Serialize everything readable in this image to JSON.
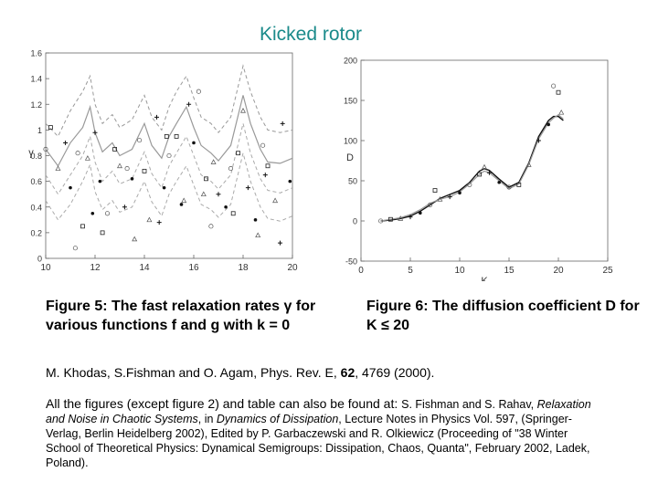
{
  "title": "Kicked rotor",
  "chart_data": [
    {
      "type": "line",
      "xlabel": "K",
      "ylabel": "γ",
      "xlim": [
        10,
        20
      ],
      "ylim": [
        0,
        1.6
      ],
      "xticks": [
        "10",
        "12",
        "14",
        "16",
        "18",
        "20"
      ],
      "yticks": [
        "0",
        "0.2",
        "0.4",
        "0.6",
        "0.8",
        "1",
        "1.2",
        "1.4",
        "1.6"
      ],
      "x": [
        10,
        10.5,
        11,
        11.5,
        11.8,
        12,
        12.3,
        12.7,
        13,
        13.5,
        14,
        14.3,
        14.7,
        15,
        15.3,
        15.7,
        16,
        16.3,
        16.7,
        17,
        17.5,
        18,
        18.3,
        18.7,
        19,
        19.5,
        20
      ],
      "series": [
        {
          "values": [
            1.05,
            0.95,
            1.15,
            1.3,
            1.42,
            1.2,
            1.05,
            1.12,
            1.02,
            1.08,
            1.27,
            1.1,
            1.0,
            1.18,
            1.3,
            1.42,
            1.25,
            1.1,
            1.05,
            0.98,
            1.1,
            1.5,
            1.3,
            1.1,
            1.0,
            0.98,
            1.0
          ]
        },
        {
          "values": [
            0.85,
            0.72,
            0.9,
            1.02,
            1.18,
            0.98,
            0.83,
            0.9,
            0.8,
            0.85,
            1.05,
            0.88,
            0.78,
            0.95,
            1.05,
            1.18,
            1.02,
            0.88,
            0.82,
            0.76,
            0.88,
            1.27,
            1.05,
            0.85,
            0.75,
            0.74,
            0.78
          ]
        },
        {
          "values": [
            0.65,
            0.5,
            0.65,
            0.8,
            0.95,
            0.75,
            0.6,
            0.68,
            0.58,
            0.62,
            0.83,
            0.66,
            0.55,
            0.72,
            0.82,
            0.95,
            0.8,
            0.65,
            0.6,
            0.54,
            0.65,
            1.05,
            0.82,
            0.62,
            0.53,
            0.51,
            0.55
          ]
        },
        {
          "values": [
            0.45,
            0.3,
            0.42,
            0.6,
            0.73,
            0.52,
            0.38,
            0.45,
            0.36,
            0.4,
            0.6,
            0.44,
            0.33,
            0.5,
            0.6,
            0.72,
            0.57,
            0.42,
            0.38,
            0.32,
            0.42,
            0.82,
            0.6,
            0.4,
            0.31,
            0.29,
            0.33
          ]
        }
      ],
      "points_x": [
        10,
        10.2,
        10.5,
        10.8,
        11,
        11.3,
        11.5,
        11.7,
        12,
        12.2,
        12.5,
        12.8,
        13,
        13.2,
        13.5,
        13.8,
        14,
        14.2,
        14.5,
        14.8,
        15,
        15.3,
        15.6,
        15.8,
        16,
        16.2,
        16.5,
        16.8,
        17,
        17.3,
        17.5,
        17.8,
        18,
        18.2,
        18.5,
        18.8,
        19,
        19.3,
        19.6,
        19.9,
        11.2,
        12.3,
        13.6,
        14.6,
        15.5,
        16.7,
        17.6,
        18.6,
        19.5,
        11.9,
        13.3,
        14.9,
        16.4,
        18.9
      ],
      "points_y": [
        0.85,
        1.02,
        0.7,
        0.9,
        0.55,
        0.82,
        0.25,
        0.78,
        0.98,
        0.6,
        0.35,
        0.85,
        0.72,
        0.4,
        0.62,
        0.92,
        0.68,
        0.3,
        1.1,
        0.55,
        0.8,
        0.95,
        0.45,
        1.2,
        0.9,
        1.3,
        0.62,
        0.75,
        0.5,
        0.4,
        0.7,
        0.82,
        1.15,
        0.55,
        0.3,
        0.88,
        0.72,
        0.45,
        1.05,
        0.6,
        0.08,
        0.2,
        0.15,
        0.28,
        0.42,
        0.25,
        0.35,
        0.18,
        0.12,
        0.35,
        0.7,
        0.95,
        0.5,
        0.65
      ]
    },
    {
      "type": "line",
      "xlabel": "K",
      "ylabel": "D",
      "xlim": [
        0,
        25
      ],
      "ylim": [
        -50,
        200
      ],
      "xticks": [
        "0",
        "5",
        "10",
        "15",
        "20",
        "25"
      ],
      "yticks": [
        "-50",
        "0",
        "50",
        "100",
        "150",
        "200"
      ],
      "x": [
        2,
        3,
        4,
        5,
        6,
        7,
        8,
        9,
        10,
        11,
        12,
        12.5,
        13,
        14,
        15,
        16,
        17,
        18,
        19,
        19.5,
        20,
        20.5
      ],
      "series": [
        {
          "values": [
            0,
            1,
            3,
            6,
            12,
            20,
            28,
            33,
            38,
            48,
            62,
            65,
            63,
            52,
            42,
            48,
            72,
            105,
            125,
            130,
            130,
            125
          ]
        },
        {
          "values": [
            0,
            2,
            4,
            8,
            14,
            22,
            27,
            30,
            36,
            46,
            58,
            62,
            60,
            50,
            40,
            46,
            70,
            102,
            122,
            128,
            132,
            127
          ]
        }
      ],
      "points_x": [
        2,
        3,
        4,
        5,
        6,
        7,
        7.5,
        8,
        9,
        10,
        11,
        12,
        12.5,
        13,
        14,
        15,
        16,
        17,
        18,
        19,
        19.5,
        20,
        20.3
      ],
      "points_y": [
        0,
        2,
        3,
        5,
        10,
        20,
        38,
        27,
        30,
        35,
        45,
        58,
        67,
        60,
        48,
        42,
        45,
        70,
        100,
        120,
        168,
        160,
        135
      ]
    }
  ],
  "captions": {
    "fig5": "Figure 5: The fast relaxation rates γ for various functions f and g with k = 0",
    "fig6": "Figure 6: The diffusion coefficient D for K ≤ 20"
  },
  "reference": {
    "text": "M. Khodas, S.Fishman and O. Agam, Phys. Rev. E, ",
    "volume": "62",
    "tail": ", 4769 (2000)."
  },
  "note": {
    "lead": "All the figures (except figure 2) and table can also be found at: ",
    "authors": "S. Fishman and S. Rahav, ",
    "book": "Relaxation and Noise in Chaotic Systems",
    "mid": ", in ",
    "series": "Dynamics of Dissipation",
    "tail": ", Lecture Notes in Physics Vol. 597, (Springer-Verlag, Berlin Heidelberg 2002), Edited by P. Garbaczewski and R. Olkiewicz (Proceeding of \"38 Winter School of Theoretical Physics: Dynamical Semigroups: Dissipation, Chaos, Quanta\", February 2002, Ladek, Poland)."
  }
}
